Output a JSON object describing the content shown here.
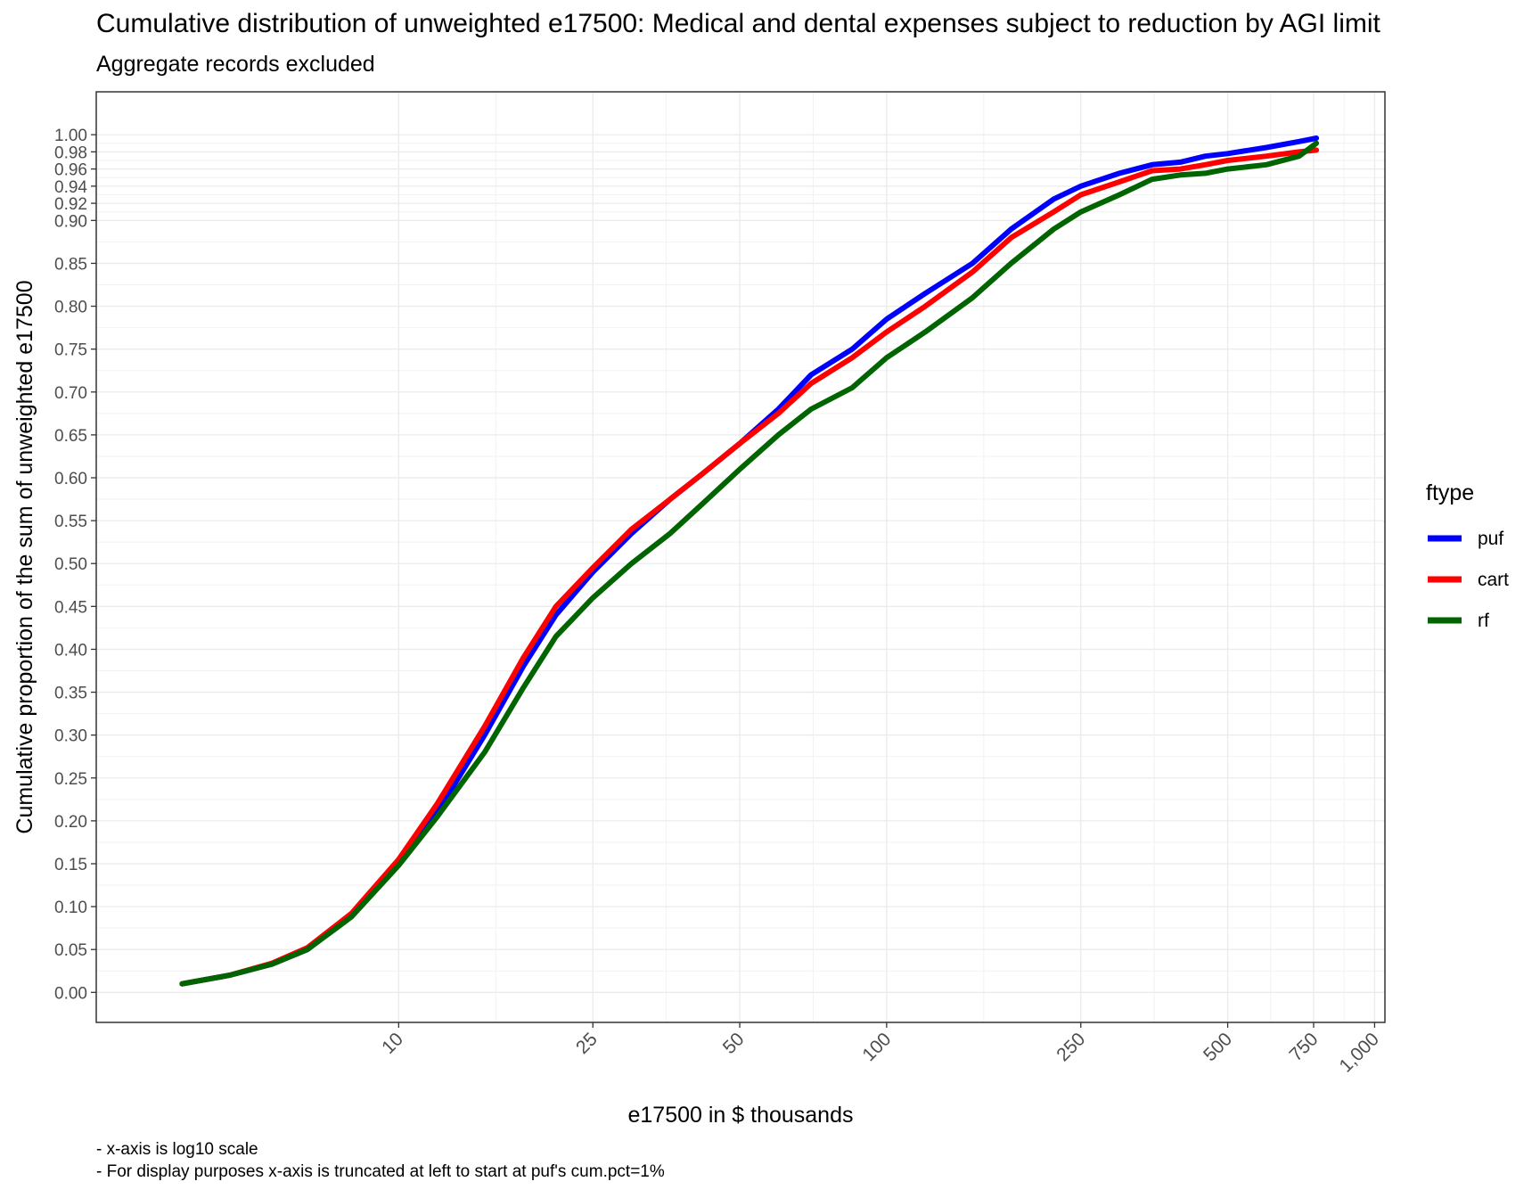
{
  "chart_data": {
    "type": "line",
    "title": "Cumulative distribution of unweighted e17500: Medical and dental expenses subject to reduction by AGI limit",
    "subtitle": "Aggregate records excluded",
    "xlabel": "e17500 in $ thousands",
    "ylabel": "Cumulative proportion of the sum of unweighted e17500",
    "x_scale": "log10",
    "xlim": [
      2.4,
      1050
    ],
    "ylim": [
      -0.035,
      1.05
    ],
    "x_ticks": [
      10,
      25,
      50,
      100,
      250,
      500,
      750,
      1000
    ],
    "x_tick_labels": [
      "10",
      "25",
      "50",
      "100",
      "250",
      "500",
      "750",
      "1,000"
    ],
    "y_ticks": [
      0,
      0.05,
      0.1,
      0.15,
      0.2,
      0.25,
      0.3,
      0.35,
      0.4,
      0.45,
      0.5,
      0.55,
      0.6,
      0.65,
      0.7,
      0.75,
      0.8,
      0.85,
      0.9,
      0.92,
      0.94,
      0.96,
      0.98,
      1.0
    ],
    "y_tick_labels": [
      "0.00",
      "0.05",
      "0.10",
      "0.15",
      "0.20",
      "0.25",
      "0.30",
      "0.35",
      "0.40",
      "0.45",
      "0.50",
      "0.55",
      "0.60",
      "0.65",
      "0.70",
      "0.75",
      "0.80",
      "0.85",
      "0.90",
      "0.92",
      "0.94",
      "0.96",
      "0.98",
      "1.00"
    ],
    "grid": true,
    "legend": {
      "title": "ftype",
      "position": "right"
    },
    "series": [
      {
        "name": "puf",
        "color": "#0000FF",
        "x": [
          3.6,
          4.5,
          5.5,
          6.5,
          8,
          10,
          12,
          15,
          18,
          21,
          25,
          30,
          36,
          42,
          50,
          60,
          70,
          85,
          100,
          120,
          150,
          180,
          220,
          250,
          300,
          350,
          400,
          450,
          500,
          600,
          700,
          760
        ],
        "y": [
          0.01,
          0.02,
          0.033,
          0.05,
          0.09,
          0.15,
          0.21,
          0.3,
          0.38,
          0.44,
          0.49,
          0.535,
          0.575,
          0.605,
          0.64,
          0.68,
          0.72,
          0.75,
          0.785,
          0.815,
          0.85,
          0.89,
          0.925,
          0.94,
          0.955,
          0.965,
          0.968,
          0.975,
          0.978,
          0.985,
          0.992,
          0.996
        ]
      },
      {
        "name": "cart",
        "color": "#FF0000",
        "x": [
          3.6,
          4.5,
          5.5,
          6.5,
          8,
          10,
          12,
          15,
          18,
          21,
          25,
          30,
          36,
          42,
          50,
          60,
          70,
          85,
          100,
          120,
          150,
          180,
          220,
          250,
          300,
          350,
          400,
          450,
          500,
          600,
          700,
          760
        ],
        "y": [
          0.01,
          0.02,
          0.034,
          0.052,
          0.092,
          0.155,
          0.22,
          0.31,
          0.39,
          0.45,
          0.495,
          0.54,
          0.575,
          0.605,
          0.64,
          0.675,
          0.71,
          0.74,
          0.77,
          0.8,
          0.84,
          0.88,
          0.91,
          0.93,
          0.945,
          0.958,
          0.96,
          0.965,
          0.97,
          0.975,
          0.98,
          0.982
        ]
      },
      {
        "name": "rf",
        "color": "#006400",
        "x": [
          3.6,
          4.5,
          5.5,
          6.5,
          8,
          10,
          12,
          15,
          18,
          21,
          25,
          30,
          36,
          42,
          50,
          60,
          70,
          85,
          100,
          120,
          150,
          180,
          220,
          250,
          300,
          350,
          400,
          450,
          500,
          600,
          700,
          760
        ],
        "y": [
          0.01,
          0.02,
          0.033,
          0.05,
          0.088,
          0.148,
          0.205,
          0.28,
          0.355,
          0.415,
          0.46,
          0.5,
          0.535,
          0.57,
          0.61,
          0.65,
          0.68,
          0.705,
          0.74,
          0.77,
          0.81,
          0.85,
          0.89,
          0.91,
          0.93,
          0.948,
          0.953,
          0.955,
          0.96,
          0.965,
          0.975,
          0.99
        ]
      }
    ],
    "captions": [
      "- x-axis is log10 scale",
      "- For display purposes x-axis is truncated at left to start at puf's cum.pct=1%"
    ]
  }
}
